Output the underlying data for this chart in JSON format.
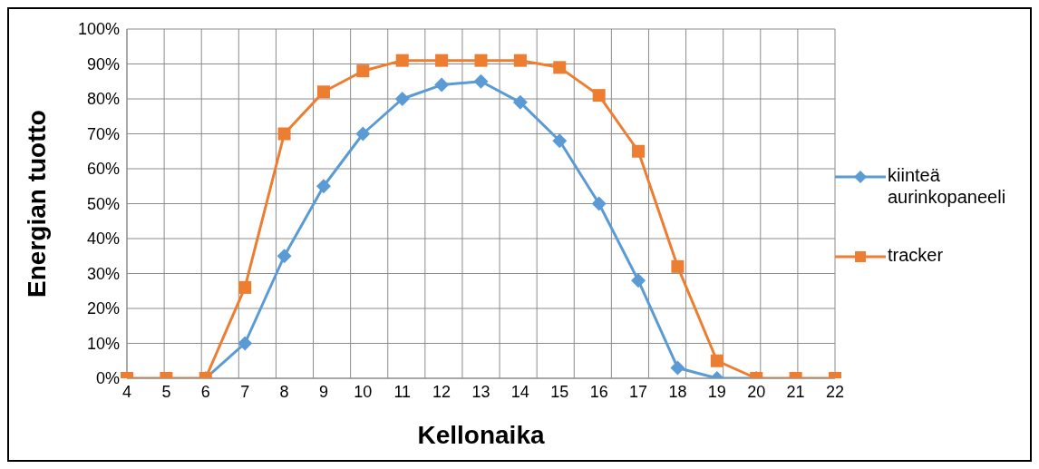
{
  "chart_data": {
    "type": "line",
    "xlabel": "Kellonaika",
    "ylabel": "Energian tuotto",
    "categories": [
      "4",
      "5",
      "6",
      "7",
      "8",
      "9",
      "10",
      "11",
      "12",
      "13",
      "14",
      "15",
      "16",
      "17",
      "18",
      "19",
      "20",
      "21",
      "22"
    ],
    "series": [
      {
        "name": "kiinteä aurinkopaneeli",
        "color": "#5b9bd5",
        "marker": "diamond",
        "values": [
          null,
          null,
          0,
          10,
          35,
          55,
          70,
          80,
          84,
          85,
          79,
          68,
          50,
          28,
          3,
          0,
          0,
          null,
          null
        ]
      },
      {
        "name": "tracker",
        "color": "#ed7d31",
        "marker": "square",
        "values": [
          0,
          0,
          0,
          26,
          70,
          82,
          88,
          91,
          91,
          91,
          91,
          89,
          81,
          65,
          32,
          5,
          0,
          0,
          0
        ]
      }
    ],
    "ylim": [
      0,
      100
    ],
    "yticks": [
      {
        "value": 0,
        "label": "0%"
      },
      {
        "value": 10,
        "label": "10%"
      },
      {
        "value": 20,
        "label": "20%"
      },
      {
        "value": 30,
        "label": "30%"
      },
      {
        "value": 40,
        "label": "40%"
      },
      {
        "value": 50,
        "label": "50%"
      },
      {
        "value": 60,
        "label": "60%"
      },
      {
        "value": 70,
        "label": "70%"
      },
      {
        "value": 80,
        "label": "80%"
      },
      {
        "value": 90,
        "label": "90%"
      },
      {
        "value": 100,
        "label": "100%"
      }
    ],
    "grid": true,
    "legend": "right",
    "line_style": "solid"
  }
}
